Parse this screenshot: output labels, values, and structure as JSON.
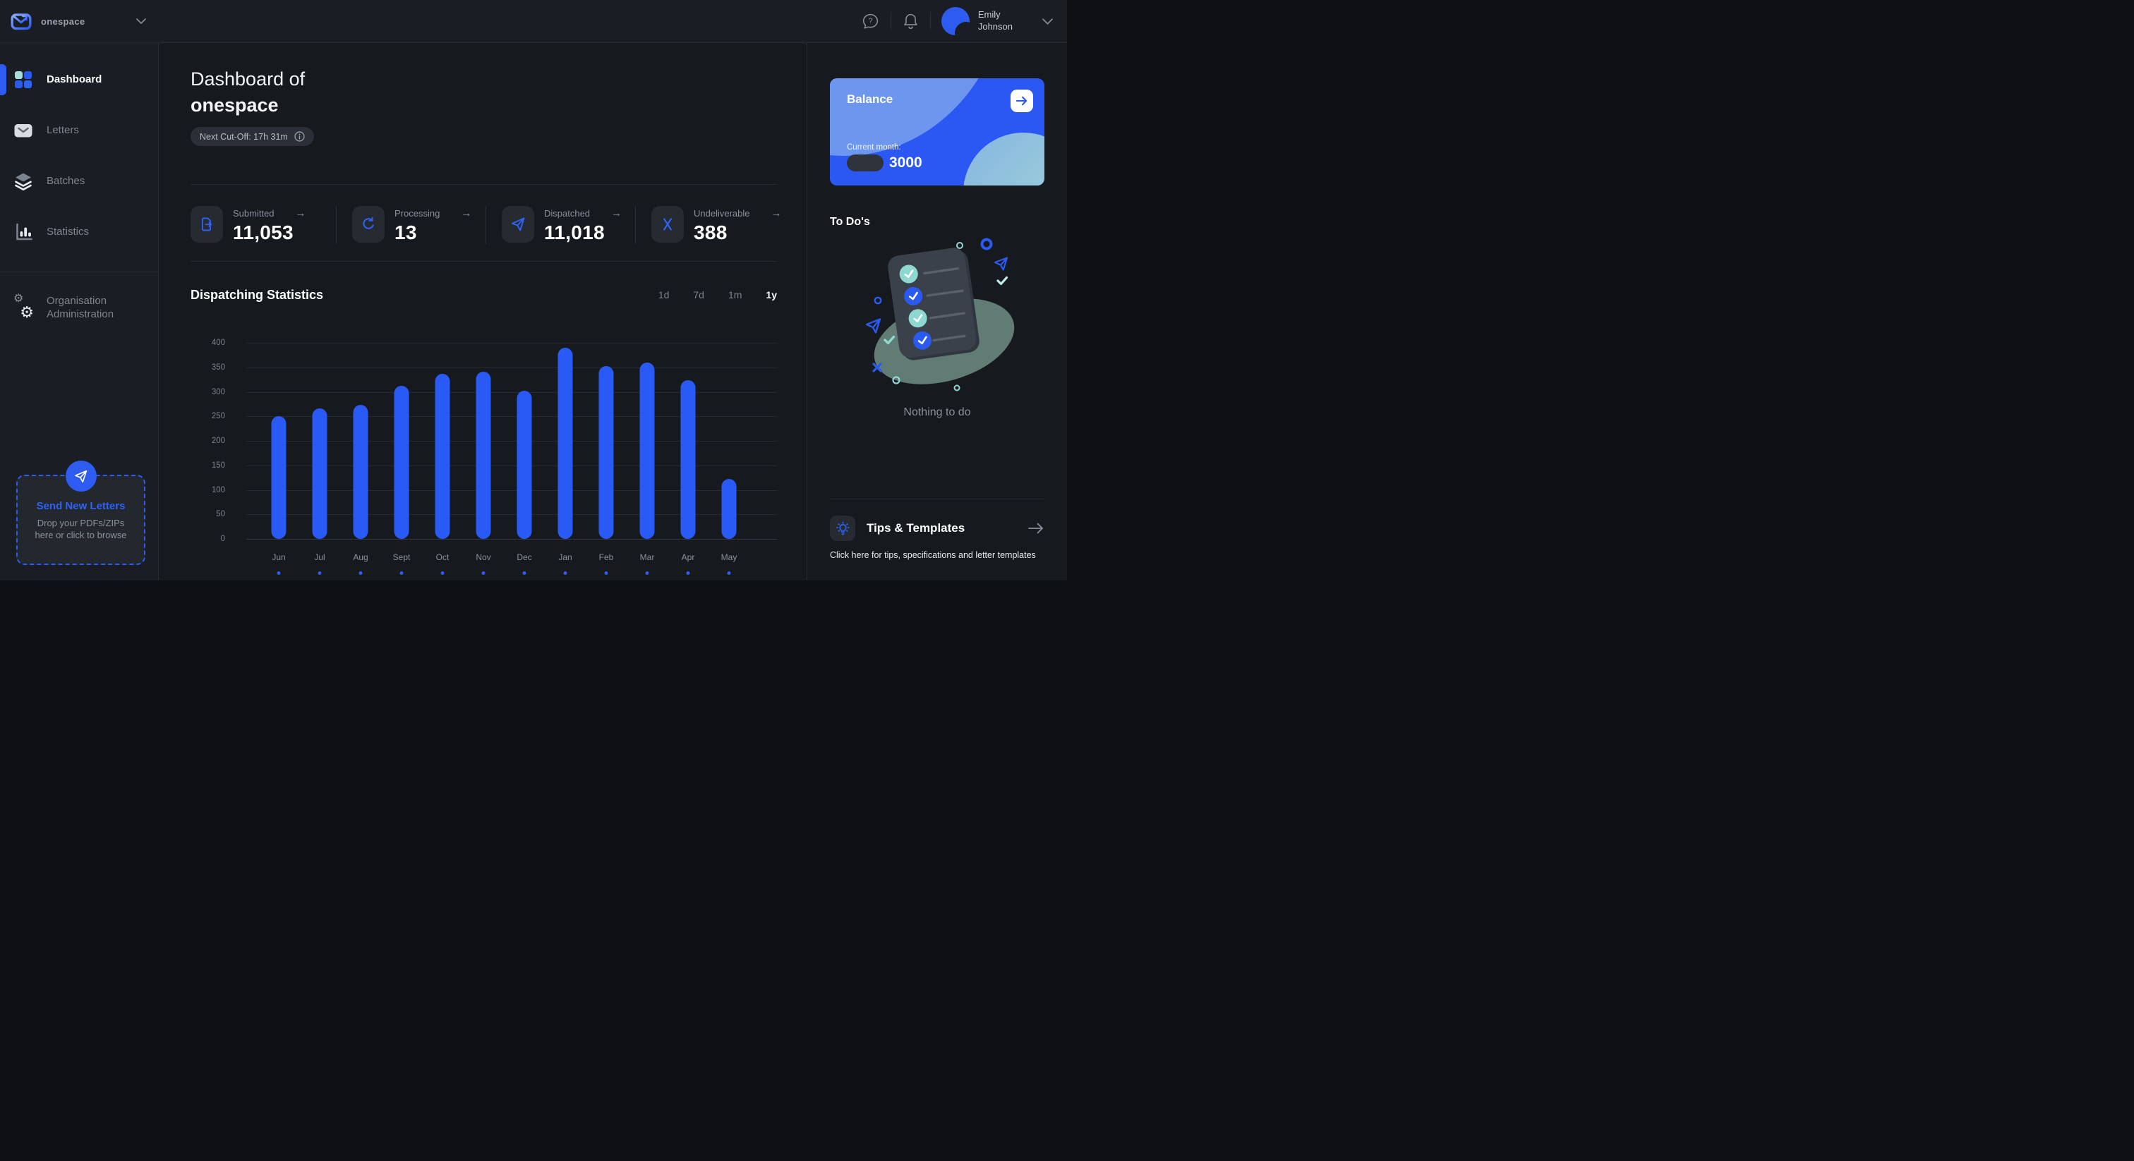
{
  "topbar": {
    "brand": "onespace",
    "user": {
      "first": "Emily",
      "last": "Johnson"
    }
  },
  "sidebar": {
    "items": [
      {
        "label": "Dashboard",
        "icon": "grid-icon",
        "active": true,
        "section": "top"
      },
      {
        "label": "Letters",
        "icon": "envelope-icon",
        "active": false,
        "section": "top"
      },
      {
        "label": "Batches",
        "icon": "layers-icon",
        "active": false,
        "section": "top"
      },
      {
        "label": "Statistics",
        "icon": "bar-chart-icon",
        "active": false,
        "section": "top"
      },
      {
        "label": "Organisation Administration",
        "icon": "gears-icon",
        "active": false,
        "section": "bottom"
      }
    ],
    "dropzone": {
      "title": "Send New Letters",
      "subtitle": "Drop your PDFs/ZIPs here or click to browse"
    }
  },
  "header": {
    "title_prefix": "Dashboard of",
    "title_org": "onespace",
    "cutoff_label": "Next Cut-Off: 17h 31m"
  },
  "stats": [
    {
      "label": "Submitted",
      "value": "11,053",
      "icon": "document-out-icon"
    },
    {
      "label": "Processing",
      "value": "13",
      "icon": "refresh-icon"
    },
    {
      "label": "Dispatched",
      "value": "11,018",
      "icon": "paper-plane-icon"
    },
    {
      "label": "Undeliverable",
      "value": "388",
      "icon": "x-icon"
    }
  ],
  "chart_section": {
    "title": "Dispatching Statistics",
    "ranges": [
      "1d",
      "7d",
      "1m",
      "1y"
    ],
    "active_range": "1y"
  },
  "chart_data": {
    "type": "bar",
    "title": "Dispatching Statistics",
    "categories": [
      "Jun",
      "Jul",
      "Aug",
      "Sept",
      "Oct",
      "Nov",
      "Dec",
      "Jan",
      "Feb",
      "Mar",
      "Apr",
      "May"
    ],
    "values": [
      250,
      266,
      273,
      313,
      337,
      341,
      302,
      390,
      352,
      360,
      324,
      122
    ],
    "xlabel": "",
    "ylabel": "",
    "ylim": [
      0,
      400
    ],
    "yticks": [
      400,
      350,
      300,
      250,
      200,
      150,
      100,
      50,
      0
    ],
    "grid": true,
    "legend_position": "none",
    "bar_color": "#2a5af5"
  },
  "right_panel": {
    "balance": {
      "title": "Balance",
      "period_label": "Current month:",
      "amount": "3000"
    },
    "todos": {
      "title": "To Do's",
      "empty_text": "Nothing to do"
    },
    "tips": {
      "title": "Tips & Templates",
      "description": "Click here for tips, specifications and letter templates"
    }
  },
  "colors": {
    "accent": "#2a5af5",
    "teal": "#8fd8d2",
    "panel": "#1a1d23",
    "background": "#16191e"
  }
}
